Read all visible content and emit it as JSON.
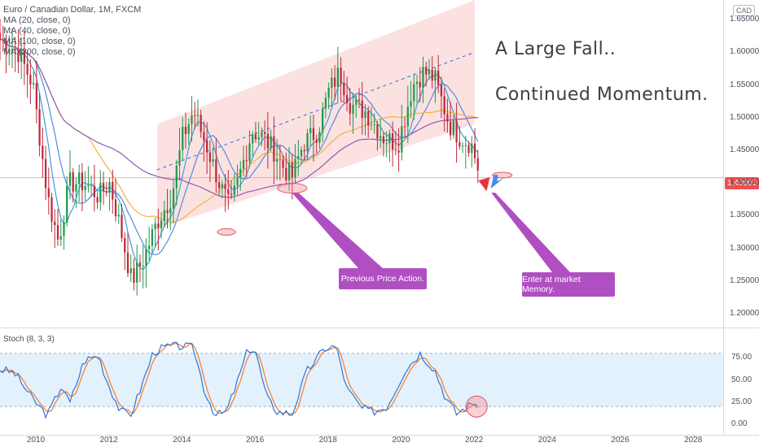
{
  "chart_data": {
    "type": "candlestick",
    "title": "Euro / Canadian Dollar, 1M, FXCM",
    "currency": "CAD",
    "last_price": "1.40803",
    "x_ticks": [
      "2010",
      "2012",
      "2014",
      "2016",
      "2018",
      "2020",
      "2022",
      "2024",
      "2026",
      "2028"
    ],
    "x_range": [
      2009.0,
      2028.8
    ],
    "price_ticks": [
      "1.65000",
      "1.60000",
      "1.55000",
      "1.50000",
      "1.45000",
      "1.40000",
      "1.35000",
      "1.30000",
      "1.25000",
      "1.20000"
    ],
    "price_range": [
      1.18,
      1.68
    ],
    "stoch_ticks": [
      "75.00",
      "50.00",
      "25.00",
      "0.00"
    ],
    "stoch_levels": [
      80,
      20
    ],
    "legend": [
      "MA (20, close, 0)",
      "MA (40, close, 0)",
      "MA (100, close, 0)",
      "MA (200, close, 0)"
    ],
    "legend_first": "Euro / Canadian Dollar, 1M, FXCM",
    "stoch_label": "Stoch (8, 3, 3)",
    "anchors": [
      [
        2009.0,
        1.62
      ],
      [
        2009.5,
        1.6
      ],
      [
        2009.9,
        1.55
      ],
      [
        2010.3,
        1.38
      ],
      [
        2010.6,
        1.31
      ],
      [
        2010.9,
        1.4
      ],
      [
        2011.3,
        1.4
      ],
      [
        2011.7,
        1.38
      ],
      [
        2012.0,
        1.4
      ],
      [
        2012.3,
        1.33
      ],
      [
        2012.6,
        1.25
      ],
      [
        2012.9,
        1.28
      ],
      [
        2013.3,
        1.34
      ],
      [
        2013.7,
        1.38
      ],
      [
        2014.0,
        1.47
      ],
      [
        2014.3,
        1.51
      ],
      [
        2014.7,
        1.45
      ],
      [
        2015.0,
        1.4
      ],
      [
        2015.3,
        1.36
      ],
      [
        2015.6,
        1.42
      ],
      [
        2015.9,
        1.48
      ],
      [
        2016.2,
        1.47
      ],
      [
        2016.5,
        1.45
      ],
      [
        2016.8,
        1.42
      ],
      [
        2017.0,
        1.41
      ],
      [
        2017.3,
        1.46
      ],
      [
        2017.7,
        1.48
      ],
      [
        2018.0,
        1.54
      ],
      [
        2018.3,
        1.57
      ],
      [
        2018.6,
        1.52
      ],
      [
        2019.0,
        1.51
      ],
      [
        2019.5,
        1.47
      ],
      [
        2019.9,
        1.46
      ],
      [
        2020.3,
        1.55
      ],
      [
        2020.6,
        1.57
      ],
      [
        2020.9,
        1.56
      ],
      [
        2021.3,
        1.49
      ],
      [
        2021.6,
        1.47
      ],
      [
        2021.9,
        1.46
      ],
      [
        2022.15,
        1.41
      ]
    ],
    "channel": [
      [
        2013.3,
        1.49,
        1.33
      ],
      [
        2022.0,
        1.68,
        1.49
      ]
    ],
    "channel_mid": [
      [
        2013.3,
        1.42
      ],
      [
        2022.0,
        1.6
      ]
    ],
    "horizontal_level": 1.408,
    "ellipses": [
      [
        2015.2,
        1.325
      ],
      [
        2017.0,
        1.392
      ],
      [
        2022.75,
        1.412
      ]
    ],
    "stoch_points": [
      [
        2009.0,
        62
      ],
      [
        2009.4,
        58
      ],
      [
        2009.9,
        28
      ],
      [
        2010.3,
        10
      ],
      [
        2010.7,
        45
      ],
      [
        2010.9,
        22
      ],
      [
        2011.3,
        72
      ],
      [
        2011.7,
        78
      ],
      [
        2011.9,
        52
      ],
      [
        2012.3,
        14
      ],
      [
        2012.6,
        12
      ],
      [
        2012.9,
        46
      ],
      [
        2013.2,
        82
      ],
      [
        2013.6,
        88
      ],
      [
        2014.0,
        88
      ],
      [
        2014.3,
        86
      ],
      [
        2014.6,
        38
      ],
      [
        2014.9,
        10
      ],
      [
        2015.2,
        14
      ],
      [
        2015.5,
        48
      ],
      [
        2015.8,
        86
      ],
      [
        2016.0,
        82
      ],
      [
        2016.3,
        30
      ],
      [
        2016.6,
        14
      ],
      [
        2017.0,
        12
      ],
      [
        2017.4,
        60
      ],
      [
        2017.9,
        86
      ],
      [
        2018.2,
        88
      ],
      [
        2018.5,
        40
      ],
      [
        2018.9,
        18
      ],
      [
        2019.2,
        14
      ],
      [
        2019.6,
        20
      ],
      [
        2020.1,
        62
      ],
      [
        2020.5,
        80
      ],
      [
        2020.9,
        62
      ],
      [
        2021.2,
        30
      ],
      [
        2021.5,
        12
      ],
      [
        2021.8,
        20
      ],
      [
        2022.0,
        25
      ],
      [
        2022.15,
        15
      ]
    ]
  },
  "annotations": {
    "headline1": "A Large Fall..",
    "headline2": "Continued Momentum.",
    "callout1": "Previous Price Action.",
    "callout2": "Enter at market Memory."
  },
  "colors": {
    "up": "#26a69a",
    "down": "#ef5350",
    "up_candle": "#1e9a4a",
    "down_candle": "#c0283a",
    "channel_fill": "#fbdcdc",
    "ma20": "#3aa0d8",
    "ma40": "#4f8ee0",
    "ma100": "#f5b338",
    "ma200": "#8e5bb8",
    "stoch_k": "#2e76d6",
    "stoch_d": "#f57c2a",
    "stoch_band": "#e3f1fc",
    "callout": "#b04fc2"
  }
}
